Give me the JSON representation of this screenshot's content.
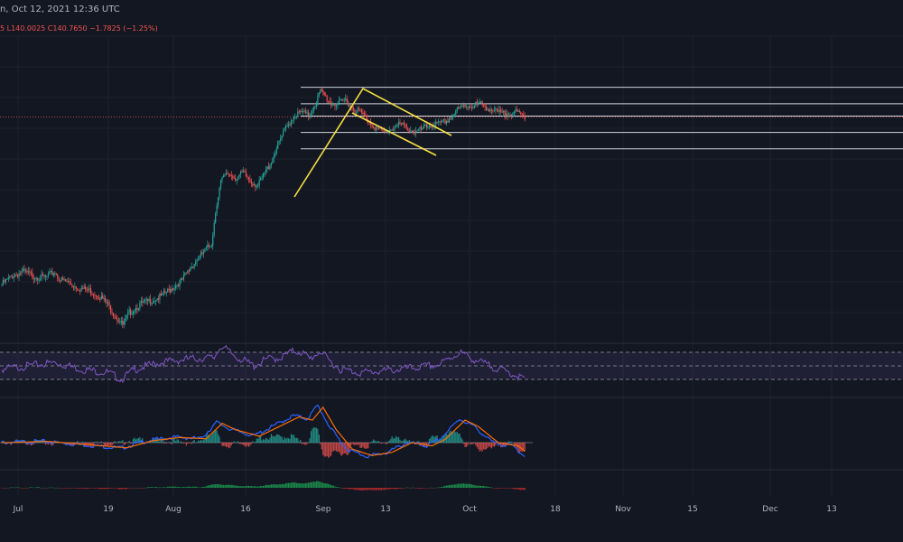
{
  "header": {
    "partial_title": "n, Oct 12, 2021 12:36 UTC",
    "ohlc_text": "5  L140.0025  C140.7650  −1.7825 (−1.25%)"
  },
  "colors": {
    "background": "#131722",
    "up": "#26a69a",
    "down": "#ef5350",
    "rsi": "#7e57c2",
    "macd": "#2962ff",
    "signal": "#ff6d00",
    "annotation": "#f5e042",
    "level": "#d1d4dc"
  },
  "chart_data": [
    {
      "type": "candlestick",
      "x_ticks": [
        "Jul",
        "19",
        "Aug",
        "16",
        "Sep",
        "13",
        "Oct",
        "18",
        "Nov",
        "15",
        "Dec",
        "13"
      ],
      "price_path": [
        [
          0,
          100
        ],
        [
          8,
          102
        ],
        [
          16,
          103
        ],
        [
          24,
          102
        ],
        [
          32,
          101.5
        ],
        [
          40,
          103
        ],
        [
          44,
          101
        ],
        [
          50,
          100.5
        ],
        [
          58,
          99
        ],
        [
          66,
          98.5
        ],
        [
          74,
          97
        ],
        [
          80,
          95
        ],
        [
          86,
          92
        ],
        [
          91,
          90
        ],
        [
          96,
          93
        ],
        [
          104,
          95
        ],
        [
          112,
          96
        ],
        [
          120,
          97
        ],
        [
          128,
          99
        ],
        [
          136,
          101
        ],
        [
          142,
          104
        ],
        [
          150,
          107
        ],
        [
          158,
          110
        ],
        [
          162,
          120
        ],
        [
          165,
          125
        ],
        [
          170,
          127
        ],
        [
          176,
          126
        ],
        [
          182,
          127
        ],
        [
          188,
          125
        ],
        [
          193,
          124
        ],
        [
          198,
          127
        ],
        [
          203,
          130
        ],
        [
          208,
          134
        ],
        [
          214,
          138
        ],
        [
          220,
          141
        ],
        [
          226,
          142
        ],
        [
          231,
          141
        ],
        [
          236,
          144
        ],
        [
          240,
          147
        ],
        [
          243,
          146
        ],
        [
          248,
          144
        ],
        [
          254,
          144
        ],
        [
          259,
          145
        ],
        [
          264,
          143
        ],
        [
          270,
          142
        ],
        [
          276,
          140
        ],
        [
          282,
          138
        ],
        [
          288,
          137
        ],
        [
          294,
          138
        ],
        [
          300,
          139
        ],
        [
          306,
          138
        ],
        [
          312,
          137
        ],
        [
          318,
          138
        ],
        [
          324,
          139
        ],
        [
          330,
          139
        ],
        [
          336,
          140
        ],
        [
          342,
          142
        ],
        [
          348,
          143.5
        ],
        [
          354,
          143.5
        ],
        [
          360,
          144
        ],
        [
          366,
          143
        ],
        [
          372,
          142
        ],
        [
          378,
          141.5
        ],
        [
          384,
          142
        ],
        [
          390,
          141.5
        ],
        [
          394,
          140.8
        ]
      ],
      "price_levels": [
        148,
        144,
        141,
        137,
        133
      ],
      "rsi_series": [
        [
          0,
          45
        ],
        [
          20,
          50
        ],
        [
          40,
          55
        ],
        [
          60,
          45
        ],
        [
          80,
          40
        ],
        [
          90,
          30
        ],
        [
          100,
          45
        ],
        [
          120,
          55
        ],
        [
          140,
          60
        ],
        [
          160,
          62
        ],
        [
          165,
          80
        ],
        [
          175,
          65
        ],
        [
          190,
          50
        ],
        [
          200,
          60
        ],
        [
          210,
          62
        ],
        [
          220,
          72
        ],
        [
          226,
          70
        ],
        [
          232,
          60
        ],
        [
          240,
          72
        ],
        [
          245,
          60
        ],
        [
          255,
          45
        ],
        [
          270,
          40
        ],
        [
          285,
          42
        ],
        [
          300,
          45
        ],
        [
          315,
          48
        ],
        [
          330,
          52
        ],
        [
          345,
          70
        ],
        [
          355,
          60
        ],
        [
          365,
          52
        ],
        [
          375,
          45
        ],
        [
          385,
          38
        ],
        [
          394,
          30
        ]
      ],
      "rsi_bands": [
        70,
        50,
        30
      ],
      "macd_series": [
        [
          0,
          0
        ],
        [
          30,
          0.2
        ],
        [
          60,
          -0.3
        ],
        [
          90,
          -0.8
        ],
        [
          110,
          0.3
        ],
        [
          130,
          0.8
        ],
        [
          150,
          0.6
        ],
        [
          162,
          3
        ],
        [
          172,
          2
        ],
        [
          190,
          1
        ],
        [
          205,
          2.5
        ],
        [
          220,
          4
        ],
        [
          230,
          3.5
        ],
        [
          238,
          5.5
        ],
        [
          248,
          2
        ],
        [
          260,
          -1
        ],
        [
          275,
          -2
        ],
        [
          290,
          -1.5
        ],
        [
          305,
          0
        ],
        [
          320,
          -0.5
        ],
        [
          330,
          0.5
        ],
        [
          345,
          3.5
        ],
        [
          355,
          2.5
        ],
        [
          370,
          0
        ],
        [
          385,
          -0.5
        ],
        [
          394,
          -2
        ]
      ]
    }
  ]
}
